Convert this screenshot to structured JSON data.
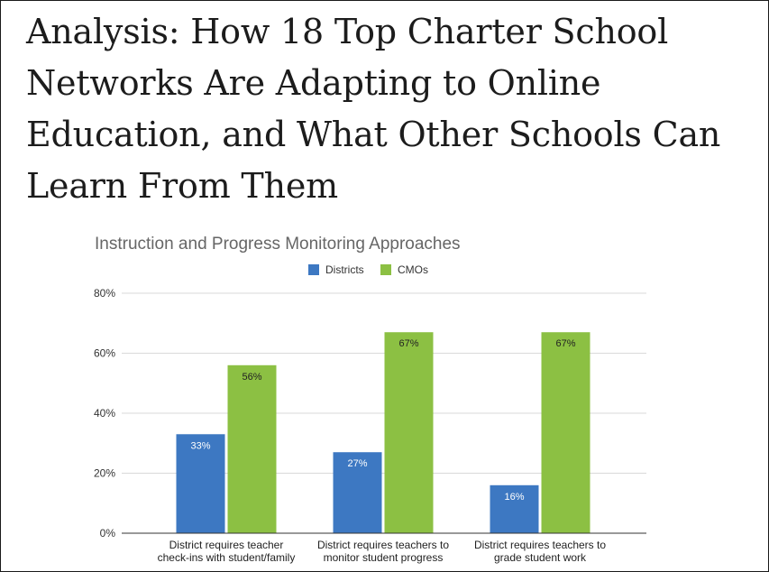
{
  "article": {
    "headline": "Analysis: How 18 Top Charter School Networks Are Adapting to Online Education, and What Other Schools Can Learn From Them"
  },
  "chart_data": {
    "type": "bar",
    "title": "Instruction and Progress Monitoring Approaches",
    "categories": [
      [
        "District requires teacher",
        "check-ins with student/family"
      ],
      [
        "District requires teachers to",
        "monitor student progress"
      ],
      [
        "District requires teachers to",
        "grade student work"
      ]
    ],
    "series": [
      {
        "name": "Districts",
        "color": "#3d78c2",
        "label_color": "#ffffff",
        "values": [
          33,
          27,
          16
        ],
        "labels": [
          "33%",
          "27%",
          "16%"
        ]
      },
      {
        "name": "CMOs",
        "color": "#8cc043",
        "label_color": "#222222",
        "values": [
          56,
          67,
          67
        ],
        "labels": [
          "56%",
          "67%",
          "67%"
        ]
      }
    ],
    "ylim": [
      0,
      80
    ],
    "yticks": [
      0,
      20,
      40,
      60,
      80
    ],
    "ytick_labels": [
      "0%",
      "20%",
      "40%",
      "60%",
      "80%"
    ],
    "xlabel": "",
    "ylabel": "",
    "grid": true,
    "legend_position": "top-center"
  }
}
